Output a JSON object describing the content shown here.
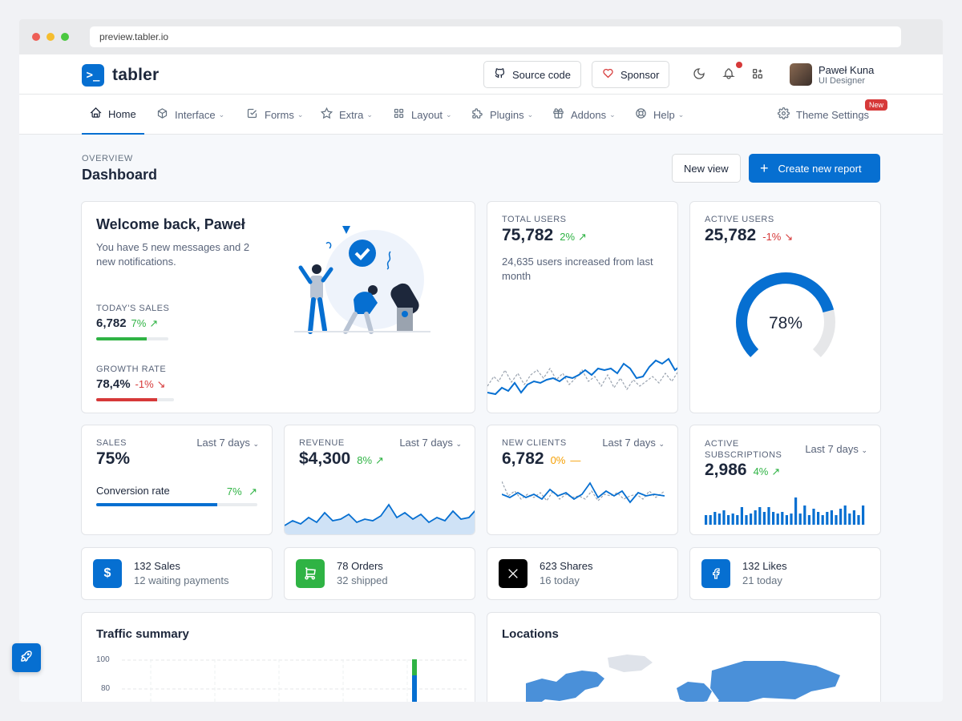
{
  "browser": {
    "url": "preview.tabler.io"
  },
  "header": {
    "logo_text": "tabler",
    "logo_glyph": ">_",
    "source_label": "Source code",
    "sponsor_label": "Sponsor",
    "user_name": "Paweł Kuna",
    "user_role": "UI Designer"
  },
  "nav": {
    "items": [
      {
        "label": "Home",
        "icon": "home-icon"
      },
      {
        "label": "Interface",
        "icon": "cube-icon"
      },
      {
        "label": "Forms",
        "icon": "checkbox-icon"
      },
      {
        "label": "Extra",
        "icon": "star-icon"
      },
      {
        "label": "Layout",
        "icon": "layout-grid-icon"
      },
      {
        "label": "Plugins",
        "icon": "puzzle-icon"
      },
      {
        "label": "Addons",
        "icon": "gift-icon"
      },
      {
        "label": "Help",
        "icon": "lifebuoy-icon"
      }
    ],
    "theme_settings": "Theme Settings",
    "new_badge": "New"
  },
  "page": {
    "pretitle": "OVERVIEW",
    "title": "Dashboard",
    "new_view": "New view",
    "create_report": "Create new report"
  },
  "welcome": {
    "title": "Welcome back, Paweł",
    "message": "You have 5 new messages and 2 new notifications.",
    "sales_label": "TODAY'S SALES",
    "sales_value": "6,782",
    "sales_delta": "7%",
    "sales_progress": 0.7,
    "growth_label": "GROWTH RATE",
    "growth_value": "78,4%",
    "growth_delta": "-1%",
    "growth_progress": 0.78
  },
  "total_users": {
    "label": "TOTAL USERS",
    "value": "75,782",
    "delta": "2%",
    "note": "24,635 users increased from last month"
  },
  "active_users": {
    "label": "ACTIVE USERS",
    "value": "25,782",
    "delta": "-1%",
    "gauge_text": "78%",
    "gauge_value": 0.78
  },
  "sales": {
    "label": "SALES",
    "range": "Last 7 days",
    "value": "75%",
    "conversion_label": "Conversion rate",
    "conversion_delta": "7%",
    "progress": 0.75
  },
  "revenue": {
    "label": "REVENUE",
    "range": "Last 7 days",
    "value": "$4,300",
    "delta": "8%"
  },
  "new_clients": {
    "label": "NEW CLIENTS",
    "range": "Last 7 days",
    "value": "6,782",
    "delta": "0%"
  },
  "subscriptions": {
    "label": "ACTIVE SUBSCRIPTIONS",
    "range": "Last 7 days",
    "value": "2,986",
    "delta": "4%"
  },
  "mini": [
    {
      "l1": "132 Sales",
      "l2": "12 waiting payments",
      "icon": "dollar-icon",
      "color": "#066fd1"
    },
    {
      "l1": "78 Orders",
      "l2": "32 shipped",
      "icon": "cart-icon",
      "color": "#2fb344"
    },
    {
      "l1": "623 Shares",
      "l2": "16 today",
      "icon": "x-logo-icon",
      "color": "#000000"
    },
    {
      "l1": "132 Likes",
      "l2": "21 today",
      "icon": "facebook-icon",
      "color": "#066fd1"
    }
  ],
  "traffic": {
    "title": "Traffic summary",
    "ticks": [
      "100",
      "80"
    ]
  },
  "locations": {
    "title": "Locations"
  },
  "colors": {
    "primary": "#066fd1",
    "success": "#2fb344",
    "danger": "#d63939",
    "warning": "#f59f00"
  }
}
